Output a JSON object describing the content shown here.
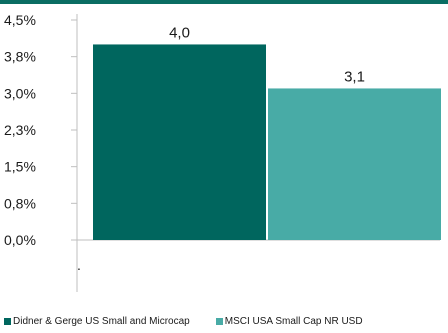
{
  "colors": {
    "top_rule": "#0a6d63",
    "series_1": "#00665e",
    "series_2": "#48aba6",
    "axis": "#bfbfbf"
  },
  "chart_data": {
    "type": "bar",
    "title": "",
    "xlabel": "",
    "ylabel": "",
    "ylim": [
      0,
      4.5
    ],
    "yticks": [
      0,
      0.75,
      1.5,
      2.25,
      3.0,
      3.75,
      4.5
    ],
    "ytick_labels": [
      "0,0%",
      "0,8%",
      "1,5%",
      "2,3%",
      "3,0%",
      "3,8%",
      "4,5%"
    ],
    "categories": [
      ""
    ],
    "category_label": ".",
    "series": [
      {
        "name": "Didner & Gerge US Small and Microcap",
        "values": [
          4.0
        ],
        "label": "4,0",
        "color": "#00665e"
      },
      {
        "name": "MSCI USA Small Cap NR USD",
        "values": [
          3.1
        ],
        "label": "3,1",
        "color": "#48aba6"
      }
    ],
    "grid": false,
    "legend": "bottom-left"
  }
}
